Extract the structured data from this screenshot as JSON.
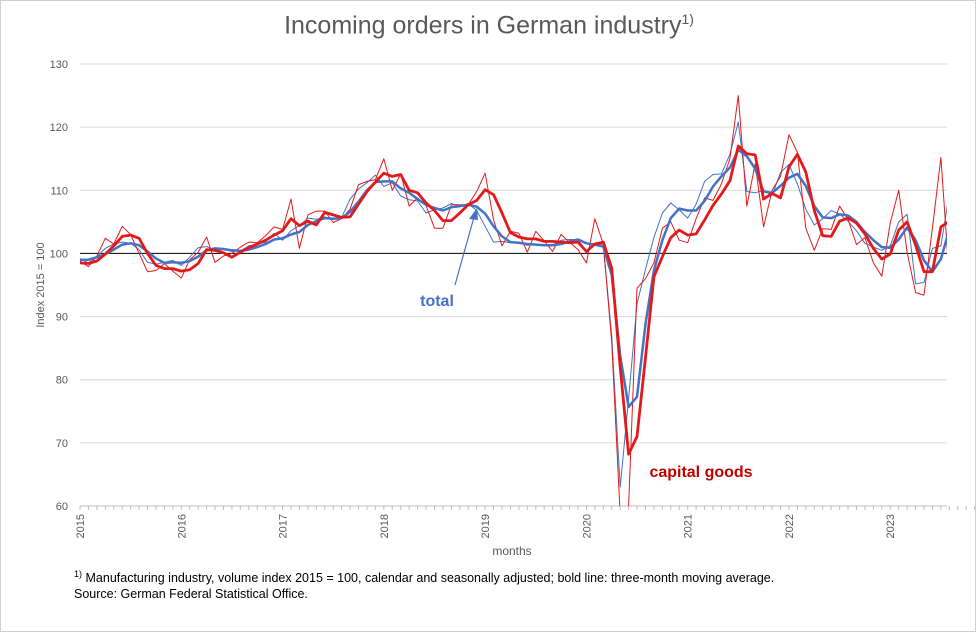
{
  "chart_data": {
    "type": "line",
    "title": "Incoming orders in German industry",
    "title_sup": "1)",
    "ylabel": "Index 2015 = 100",
    "xlabel": "months",
    "ylim": [
      60,
      130
    ],
    "yticks": [
      60,
      70,
      80,
      90,
      100,
      110,
      120,
      130
    ],
    "xticks": [
      "2015",
      "2016",
      "2017",
      "2018",
      "2019",
      "2020",
      "2021",
      "2022",
      "2023"
    ],
    "reference_line": 100,
    "annotations": {
      "total": "total",
      "capital_goods": "capital goods"
    },
    "colors": {
      "total": "#4472c4",
      "capital_goods": "#e31a1c",
      "ref": "#000000",
      "axis": "#bfbfbf",
      "grid": "#d9d9d9"
    },
    "series": [
      {
        "key": "total_monthly",
        "start": "2015-01",
        "values": [
          99.2,
          98.5,
          99.5,
          100.8,
          101.5,
          101.8,
          101.6,
          100.6,
          98.6,
          98.3,
          98.6,
          98.9,
          98.1,
          99.4,
          100.9,
          101.1,
          100.5,
          100.6,
          100.3,
          100.4,
          101.2,
          101.5,
          101.8,
          103.2,
          102.1,
          103.6,
          104.4,
          105.6,
          105.4,
          105.8,
          105.4,
          105.7,
          108.6,
          110.2,
          111.2,
          112.4,
          110.6,
          111.2,
          109.1,
          108.5,
          108.3,
          106.4,
          106.9,
          107.2,
          107.9,
          107.4,
          107.9,
          106.8,
          104.3,
          101.8,
          101.9,
          101.7,
          101.6,
          101.3,
          101.4,
          101.2,
          101.3,
          102.1,
          102.2,
          102.2,
          100.3,
          101.6,
          101.3,
          87.0,
          63.0,
          77.0,
          92.0,
          97.5,
          102.5,
          106.4,
          108.0,
          106.9,
          105.6,
          107.8,
          111.4,
          112.5,
          112.6,
          115.7,
          120.8,
          109.8,
          109.6,
          110.0,
          109.2,
          112.8,
          114.1,
          111.0,
          107.0,
          104.5,
          105.5,
          106.8,
          106.2,
          105.1,
          103.6,
          101.6,
          101.0,
          100.5,
          101.2,
          105.0,
          106.2,
          95.2,
          95.4,
          100.8,
          101.2,
          109.5,
          97.0
        ]
      },
      {
        "key": "total_ma",
        "start": "2015-01",
        "values": [
          99.0,
          99.0,
          99.4,
          99.9,
          100.6,
          101.4,
          101.6,
          101.3,
          100.3,
          99.2,
          98.5,
          98.6,
          98.5,
          98.8,
          99.5,
          100.5,
          100.8,
          100.7,
          100.5,
          100.4,
          100.6,
          101.0,
          101.5,
          102.2,
          102.4,
          103.0,
          103.4,
          104.5,
          105.1,
          105.6,
          105.5,
          105.6,
          106.6,
          108.2,
          110.0,
          111.3,
          111.4,
          111.4,
          110.3,
          109.6,
          108.6,
          107.7,
          107.2,
          106.8,
          107.3,
          107.5,
          107.7,
          107.4,
          106.3,
          104.3,
          102.7,
          101.8,
          101.7,
          101.5,
          101.4,
          101.3,
          101.3,
          101.5,
          101.9,
          102.2,
          101.6,
          101.4,
          101.1,
          96.6,
          83.8,
          75.7,
          77.3,
          88.8,
          97.3,
          102.1,
          105.6,
          107.1,
          106.8,
          106.8,
          108.3,
          110.6,
          112.2,
          113.6,
          116.4,
          115.4,
          113.4,
          109.8,
          109.6,
          110.7,
          112.0,
          112.6,
          110.7,
          107.5,
          105.7,
          105.6,
          106.2,
          106.0,
          105.0,
          103.4,
          102.1,
          101.0,
          100.9,
          102.2,
          104.1,
          102.1,
          98.9,
          97.1,
          99.1,
          103.8,
          102.6
        ]
      },
      {
        "key": "capital_monthly",
        "start": "2015-01",
        "values": [
          98.8,
          97.9,
          99.6,
          102.4,
          101.5,
          104.3,
          103.0,
          100.0,
          97.1,
          97.3,
          98.4,
          97.2,
          96.1,
          99.0,
          100.2,
          102.6,
          98.6,
          99.6,
          100.0,
          101.0,
          101.8,
          101.7,
          102.8,
          104.2,
          103.8,
          108.6,
          100.8,
          106.1,
          106.7,
          106.7,
          104.9,
          105.5,
          107.0,
          110.9,
          111.4,
          111.7,
          115.0,
          110.0,
          112.6,
          107.5,
          108.8,
          107.6,
          104.0,
          104.0,
          107.7,
          107.7,
          107.7,
          109.8,
          112.7,
          105.3,
          101.2,
          103.5,
          103.2,
          100.2,
          103.5,
          102.0,
          100.3,
          103.0,
          101.8,
          100.6,
          98.5,
          105.5,
          101.5,
          86.0,
          58.5,
          60.0,
          94.5,
          96.0,
          98.5,
          104.0,
          105.0,
          102.1,
          101.7,
          105.5,
          108.8,
          108.4,
          111.0,
          115.0,
          125.0,
          107.5,
          114.2,
          104.2,
          110.0,
          112.2,
          118.8,
          116.0,
          104.0,
          100.5,
          103.9,
          103.8,
          107.5,
          105.4,
          101.4,
          102.5,
          98.5,
          96.4,
          104.8,
          110.0,
          100.2,
          93.8,
          93.4,
          104.0,
          115.2,
          96.0
        ]
      },
      {
        "key": "capital_ma",
        "start": "2015-01",
        "values": [
          98.5,
          98.4,
          98.8,
          99.9,
          101.2,
          102.7,
          102.9,
          102.4,
          100.0,
          98.1,
          97.6,
          97.6,
          97.2,
          97.4,
          98.4,
          100.6,
          100.5,
          100.1,
          99.4,
          100.2,
          100.9,
          101.5,
          102.1,
          102.9,
          103.6,
          105.5,
          104.4,
          105.1,
          104.5,
          106.5,
          106.1,
          105.7,
          105.8,
          107.8,
          109.8,
          111.3,
          112.7,
          112.2,
          112.5,
          110.0,
          109.6,
          108.0,
          106.8,
          105.2,
          105.2,
          106.4,
          107.7,
          108.4,
          110.1,
          109.3,
          106.4,
          103.3,
          102.6,
          102.3,
          102.3,
          101.9,
          101.9,
          101.8,
          101.7,
          101.8,
          100.3,
          101.5,
          101.8,
          97.7,
          82.0,
          68.2,
          71.0,
          83.5,
          96.3,
          99.5,
          102.5,
          103.7,
          102.9,
          103.1,
          105.3,
          107.6,
          109.4,
          111.5,
          117.0,
          115.8,
          115.6,
          108.6,
          109.5,
          108.8,
          113.7,
          115.7,
          112.9,
          106.8,
          102.8,
          102.7,
          105.1,
          105.6,
          104.8,
          103.1,
          100.8,
          99.1,
          99.9,
          103.7,
          105.0,
          101.3,
          97.1,
          97.1,
          104.2,
          105.1,
          101.5
        ]
      }
    ]
  },
  "footnote": {
    "sup": "1)",
    "line1": "Manufacturing industry, volume index 2015 = 100,  calendar and seasonally adjusted; bold line: three-month moving average.",
    "line2": "Source: German Federal Statistical Office."
  }
}
